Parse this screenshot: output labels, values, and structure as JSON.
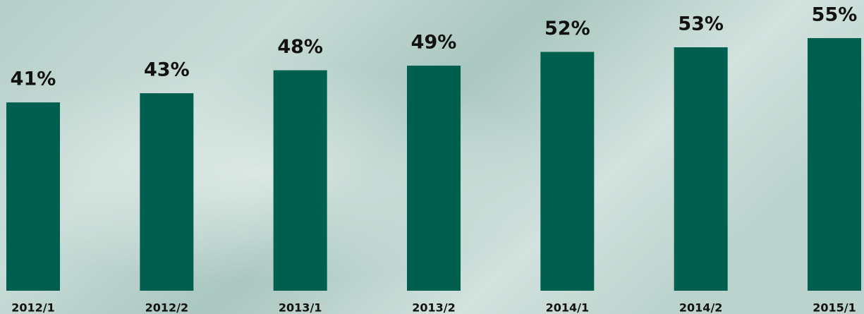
{
  "chart_data": {
    "type": "bar",
    "categories": [
      "2012/1",
      "2012/2",
      "2013/1",
      "2013/2",
      "2014/1",
      "2014/2",
      "2015/1"
    ],
    "values": [
      41,
      43,
      48,
      49,
      52,
      53,
      55
    ],
    "value_labels": [
      "41%",
      "43%",
      "48%",
      "49%",
      "52%",
      "53%",
      "55%"
    ],
    "color": "#005f4e"
  }
}
